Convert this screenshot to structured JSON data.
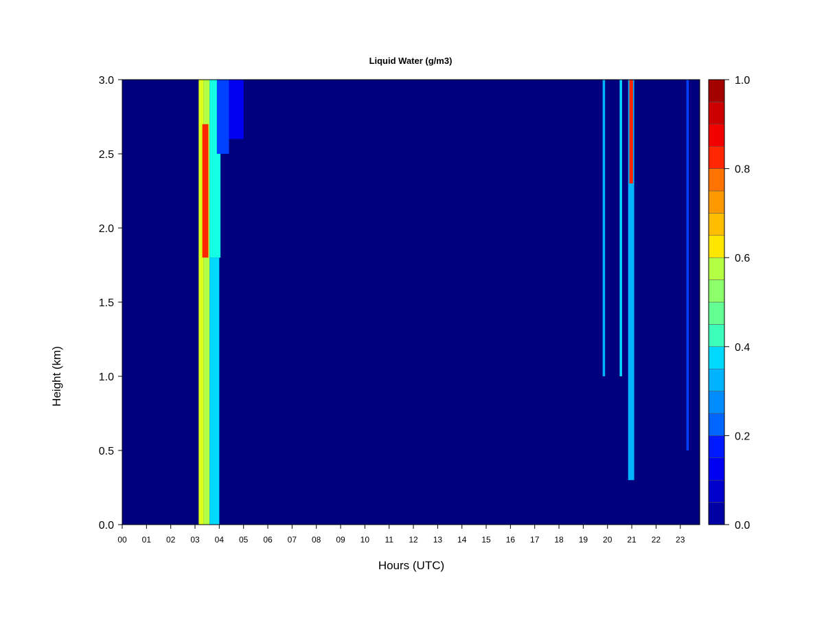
{
  "chart_data": {
    "type": "heatmap",
    "title": "Liquid Water (g/m3)",
    "xlabel": "Hours (UTC)",
    "ylabel": "Height (km)",
    "xlim": [
      0,
      23.8
    ],
    "ylim": [
      0,
      3.0
    ],
    "x_ticks": [
      "00",
      "01",
      "02",
      "03",
      "04",
      "05",
      "06",
      "07",
      "08",
      "09",
      "10",
      "11",
      "12",
      "13",
      "14",
      "15",
      "16",
      "17",
      "18",
      "19",
      "20",
      "21",
      "22",
      "23"
    ],
    "y_ticks": [
      "0.0",
      "0.5",
      "1.0",
      "1.5",
      "2.0",
      "2.5",
      "3.0"
    ],
    "colorbar": {
      "min": 0.0,
      "max": 1.0,
      "levels": 20,
      "ticks": [
        "0.0",
        "0.2",
        "0.4",
        "0.6",
        "0.8",
        "1.0"
      ],
      "colors": [
        "#00007f",
        "#0000a5",
        "#0000cc",
        "#0000f2",
        "#001aff",
        "#0040ff",
        "#0066ff",
        "#008cff",
        "#00b3ff",
        "#00d9ff",
        "#14ffe3",
        "#3cffbb",
        "#64ff93",
        "#8cff6b",
        "#b4ff43",
        "#dcff1b",
        "#ffe600",
        "#ffbf00",
        "#ff9900",
        "#ff7300",
        "#ff4d00",
        "#ff2600",
        "#f20000",
        "#cc0000",
        "#a50000",
        "#7f0000"
      ]
    },
    "background_value": 0.0,
    "events": [
      {
        "x_start": 3.15,
        "x_end": 3.35,
        "y_start": 0.0,
        "y_end": 3.0,
        "value": 0.6
      },
      {
        "x_start": 3.35,
        "x_end": 3.6,
        "y_start": 0.0,
        "y_end": 3.0,
        "value": 0.55
      },
      {
        "x_start": 3.3,
        "x_end": 3.55,
        "y_start": 1.8,
        "y_end": 2.7,
        "value": 0.85
      },
      {
        "x_start": 3.6,
        "x_end": 4.0,
        "y_start": 0.0,
        "y_end": 1.8,
        "value": 0.35
      },
      {
        "x_start": 3.6,
        "x_end": 4.05,
        "y_start": 1.8,
        "y_end": 3.0,
        "value": 0.4
      },
      {
        "x_start": 3.9,
        "x_end": 4.4,
        "y_start": 2.5,
        "y_end": 3.0,
        "value": 0.2
      },
      {
        "x_start": 4.4,
        "x_end": 5.0,
        "y_start": 2.6,
        "y_end": 3.0,
        "value": 0.1
      },
      {
        "x_start": 19.8,
        "x_end": 19.9,
        "y_start": 1.0,
        "y_end": 3.0,
        "value": 0.3
      },
      {
        "x_start": 20.5,
        "x_end": 20.6,
        "y_start": 1.0,
        "y_end": 3.0,
        "value": 0.35
      },
      {
        "x_start": 20.85,
        "x_end": 21.1,
        "y_start": 0.3,
        "y_end": 3.0,
        "value": 0.3
      },
      {
        "x_start": 20.9,
        "x_end": 21.05,
        "y_start": 2.3,
        "y_end": 3.0,
        "value": 0.85
      },
      {
        "x_start": 23.25,
        "x_end": 23.35,
        "y_start": 0.5,
        "y_end": 3.0,
        "value": 0.2
      }
    ]
  }
}
